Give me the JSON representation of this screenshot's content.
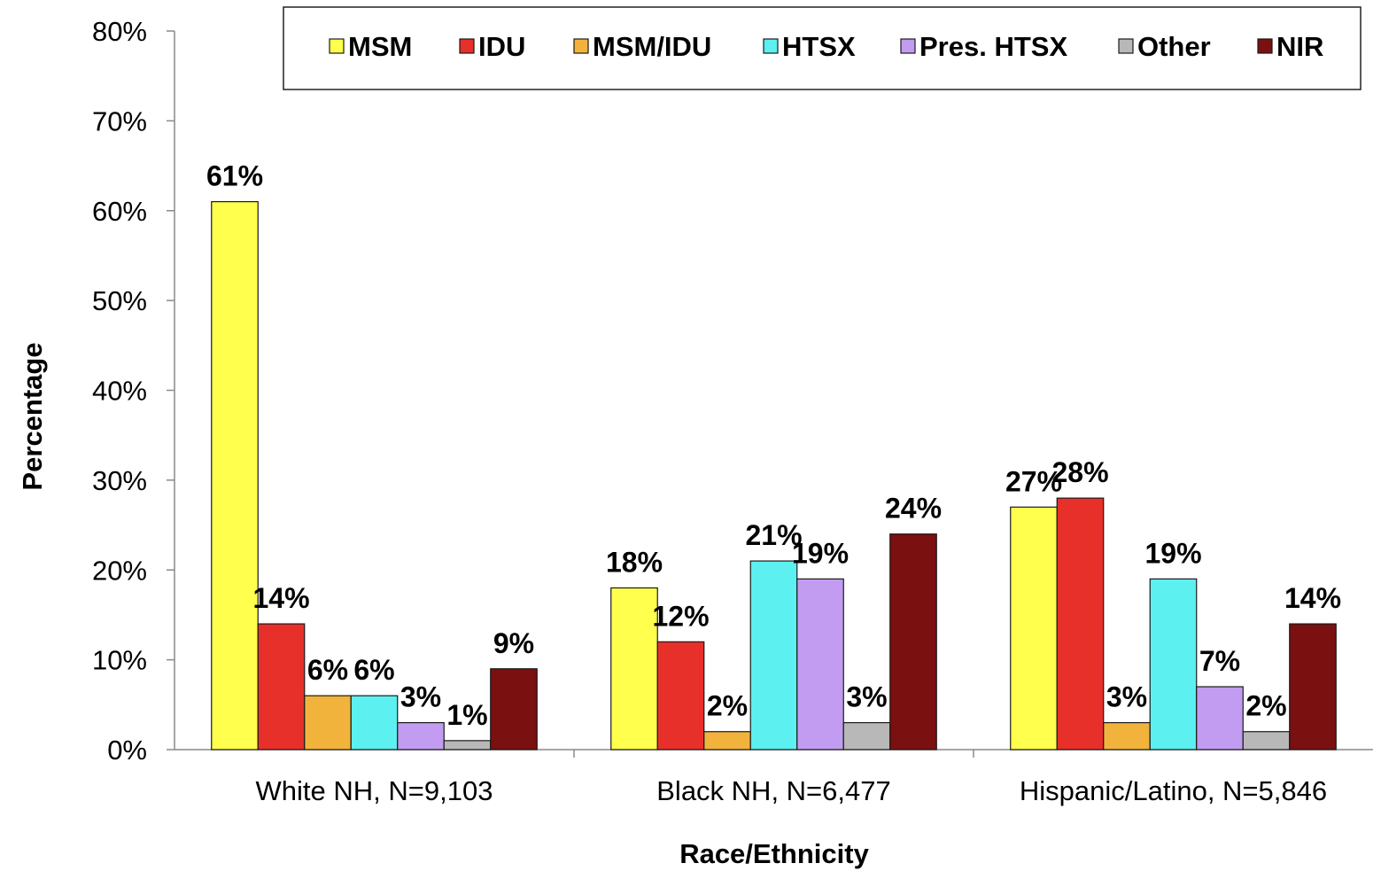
{
  "chart_data": {
    "type": "bar",
    "xlabel": "Race/Ethnicity",
    "ylabel": "Percentage",
    "ylim": [
      0,
      80
    ],
    "yticks": [
      "0%",
      "10%",
      "20%",
      "30%",
      "40%",
      "50%",
      "60%",
      "70%",
      "80%"
    ],
    "grid": false,
    "legend_position": "top",
    "categories": [
      "White NH, N=9,103",
      "Black NH, N=6,477",
      "Hispanic/Latino, N=5,846"
    ],
    "series": [
      {
        "name": "MSM",
        "color": "#FFFF4D",
        "values": [
          61,
          18,
          27
        ],
        "labels": [
          "61%",
          "18%",
          "27%"
        ]
      },
      {
        "name": "IDU",
        "color": "#E8302A",
        "values": [
          14,
          12,
          28
        ],
        "labels": [
          "14%",
          "12%",
          "28%"
        ]
      },
      {
        "name": "MSM/IDU",
        "color": "#F2B33D",
        "values": [
          6,
          2,
          3
        ],
        "labels": [
          "6%",
          "2%",
          "3%"
        ]
      },
      {
        "name": "HTSX",
        "color": "#5CF0F0",
        "values": [
          6,
          21,
          19
        ],
        "labels": [
          "6%",
          "21%",
          "19%"
        ]
      },
      {
        "name": "Pres. HTSX",
        "color": "#C29CF0",
        "values": [
          3,
          19,
          7
        ],
        "labels": [
          "3%",
          "19%",
          "7%"
        ]
      },
      {
        "name": "Other",
        "color": "#B8B8B8",
        "values": [
          1,
          3,
          2
        ],
        "labels": [
          "1%",
          "3%",
          "2%"
        ]
      },
      {
        "name": "NIR",
        "color": "#7A1010",
        "values": [
          9,
          24,
          14
        ],
        "labels": [
          "9%",
          "24%",
          "14%"
        ]
      }
    ]
  }
}
